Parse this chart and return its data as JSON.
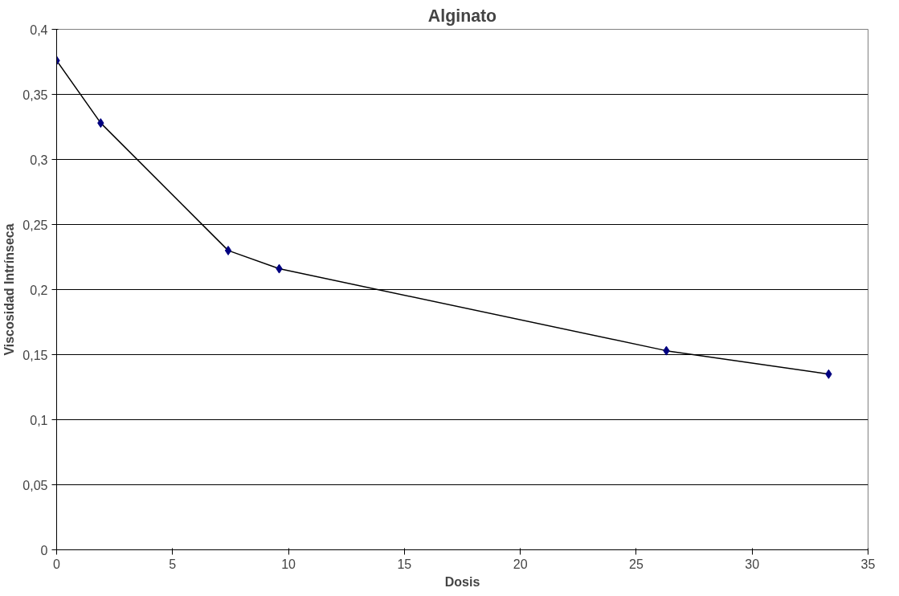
{
  "chart_data": {
    "type": "line",
    "title": "Alginato",
    "xlabel": "Dosis",
    "ylabel": "Viscosidad Intrínseca",
    "x": [
      0,
      1.9,
      7.4,
      9.6,
      26.3,
      33.3
    ],
    "series": [
      {
        "color": "#000080",
        "values": [
          0.376,
          0.328,
          0.23,
          0.216,
          0.153,
          0.135
        ]
      }
    ],
    "marker": "diamond",
    "line_style": "solid",
    "grid": "y",
    "xlim": [
      0,
      35
    ],
    "xticks": [
      0,
      5,
      10,
      15,
      20,
      25,
      30,
      35
    ],
    "ylim": [
      0,
      0.4
    ],
    "yticks": [
      {
        "value": 0,
        "label": "0"
      },
      {
        "value": 0.05,
        "label": "0,05"
      },
      {
        "value": 0.1,
        "label": "0,1"
      },
      {
        "value": 0.15,
        "label": "0,15"
      },
      {
        "value": 0.2,
        "label": "0,2"
      },
      {
        "value": 0.25,
        "label": "0,25"
      },
      {
        "value": 0.3,
        "label": "0,3"
      },
      {
        "value": 0.35,
        "label": "0,35"
      },
      {
        "value": 0.4,
        "label": "0,4"
      }
    ]
  }
}
